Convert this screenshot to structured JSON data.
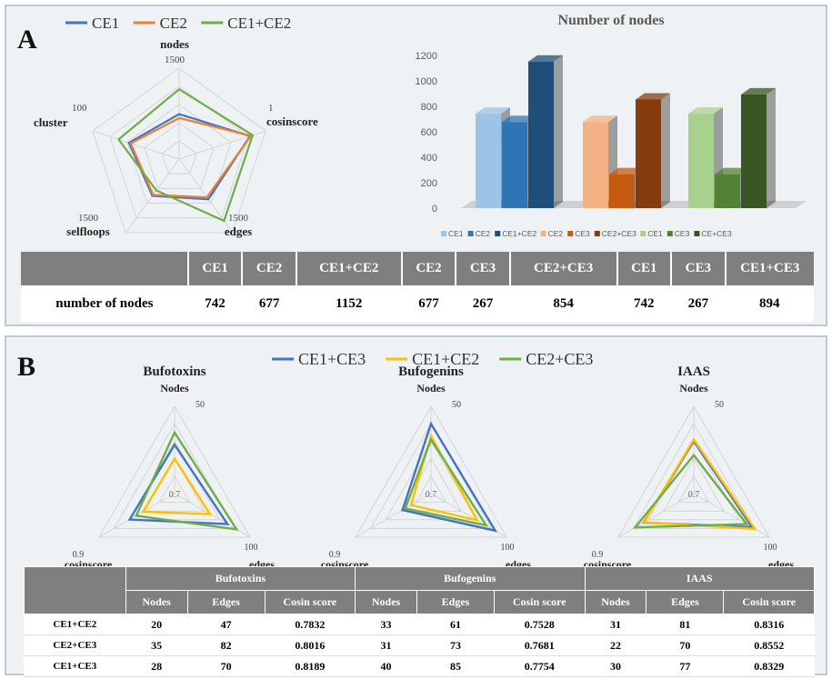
{
  "panelA": {
    "letter": "A",
    "legend": [
      {
        "name": "CE1",
        "color": "#4472c4"
      },
      {
        "name": "CE2",
        "color": "#ed7d31"
      },
      {
        "name": "CE1+CE2",
        "color": "#70ad47"
      }
    ],
    "bar_title": "Number of nodes",
    "table": {
      "header": [
        "",
        "CE1",
        "CE2",
        "CE1+CE2",
        "CE2",
        "CE3",
        "CE2+CE3",
        "CE1",
        "CE3",
        "CE1+CE3"
      ],
      "row_label": "number of nodes",
      "values": [
        "742",
        "677",
        "1152",
        "677",
        "267",
        "854",
        "742",
        "267",
        "894"
      ]
    }
  },
  "panelB": {
    "letter": "B",
    "legend": [
      {
        "name": "CE1+CE3",
        "color": "#4472c4"
      },
      {
        "name": "CE1+CE2",
        "color": "#ffc000"
      },
      {
        "name": "CE2+CE3",
        "color": "#70ad47"
      }
    ],
    "table": {
      "groups": [
        "Bufotoxins",
        "Bufogenins",
        "IAAS"
      ],
      "subheaders": [
        "Nodes",
        "Edges",
        "Cosin score"
      ],
      "rows": [
        {
          "label": "CE1+CE2",
          "values": [
            "20",
            "47",
            "0.7832",
            "33",
            "61",
            "0.7528",
            "31",
            "81",
            "0.8316"
          ]
        },
        {
          "label": "CE2+CE3",
          "values": [
            "35",
            "82",
            "0.8016",
            "31",
            "73",
            "0.7681",
            "22",
            "70",
            "0.8552"
          ]
        },
        {
          "label": "CE1+CE3",
          "values": [
            "28",
            "70",
            "0.8189",
            "40",
            "85",
            "0.7754",
            "30",
            "77",
            "0.8329"
          ]
        }
      ]
    }
  },
  "chart_data": [
    {
      "type": "radar",
      "title": "",
      "axes": [
        "nodes",
        "cosinscore",
        "edges",
        "selfloops",
        "cluster"
      ],
      "axis_max_labels": [
        "1500",
        "1",
        "1500",
        "1500",
        "100"
      ],
      "axis_max": [
        1500,
        1,
        1500,
        1500,
        100
      ],
      "series": [
        {
          "name": "CE1",
          "values": [
            742,
            0.82,
            820,
            750,
            58
          ]
        },
        {
          "name": "CE2",
          "values": [
            677,
            0.83,
            780,
            730,
            56
          ]
        },
        {
          "name": "CE1+CE2",
          "values": [
            1152,
            0.85,
            1260,
            640,
            70
          ]
        }
      ]
    },
    {
      "type": "bar",
      "title": "Number of nodes",
      "categories": [
        "CE1",
        "CE2",
        "CE1+CE2",
        "CE2",
        "CE3",
        "CE2+CE3",
        "CE1",
        "CE3",
        "CE+CE3"
      ],
      "values": [
        742,
        677,
        1152,
        677,
        267,
        854,
        742,
        267,
        894
      ],
      "colors": [
        "#9dc3e6",
        "#2e75b6",
        "#1f4e79",
        "#f4b183",
        "#c55a11",
        "#843c0c",
        "#a9d18e",
        "#548235",
        "#375623"
      ],
      "yticks": [
        "0",
        "200",
        "400",
        "600",
        "800",
        "1000",
        "1200"
      ],
      "ylim": [
        0,
        1200
      ],
      "legend_position": "bottom"
    },
    {
      "type": "radar",
      "title": "Bufotoxins",
      "axes": [
        "Nodes",
        "edges",
        "cosinscore"
      ],
      "axis_max_labels": [
        "50",
        "100",
        "0.9"
      ],
      "axis_min_label": "0.7",
      "axis_min": [
        0,
        0,
        0.7
      ],
      "axis_max": [
        50,
        100,
        0.9
      ],
      "series": [
        {
          "name": "CE1+CE3",
          "values": [
            28,
            70,
            0.8189
          ]
        },
        {
          "name": "CE1+CE2",
          "values": [
            20,
            47,
            0.7832
          ]
        },
        {
          "name": "CE2+CE3",
          "values": [
            35,
            82,
            0.8016
          ]
        }
      ]
    },
    {
      "type": "radar",
      "title": "Bufogenins",
      "axes": [
        "Nodes",
        "edges",
        "cosinscore"
      ],
      "axis_max_labels": [
        "50",
        "100",
        "0.9"
      ],
      "axis_min_label": "0.7",
      "axis_min": [
        0,
        0,
        0.7
      ],
      "axis_max": [
        50,
        100,
        0.9
      ],
      "series": [
        {
          "name": "CE1+CE3",
          "values": [
            40,
            85,
            0.7754
          ]
        },
        {
          "name": "CE1+CE2",
          "values": [
            33,
            61,
            0.7528
          ]
        },
        {
          "name": "CE2+CE3",
          "values": [
            31,
            73,
            0.7681
          ]
        }
      ]
    },
    {
      "type": "radar",
      "title": "IAAS",
      "axes": [
        "Nodes",
        "edges",
        "cosinscore"
      ],
      "axis_max_labels": [
        "50",
        "100",
        "0.9"
      ],
      "axis_min_label": "0.7",
      "axis_min": [
        0,
        0,
        0.7
      ],
      "axis_max": [
        50,
        100,
        0.9
      ],
      "series": [
        {
          "name": "CE1+CE3",
          "values": [
            30,
            77,
            0.8329
          ]
        },
        {
          "name": "CE1+CE2",
          "values": [
            31,
            81,
            0.8316
          ]
        },
        {
          "name": "CE2+CE3",
          "values": [
            22,
            70,
            0.8552
          ]
        }
      ]
    }
  ]
}
